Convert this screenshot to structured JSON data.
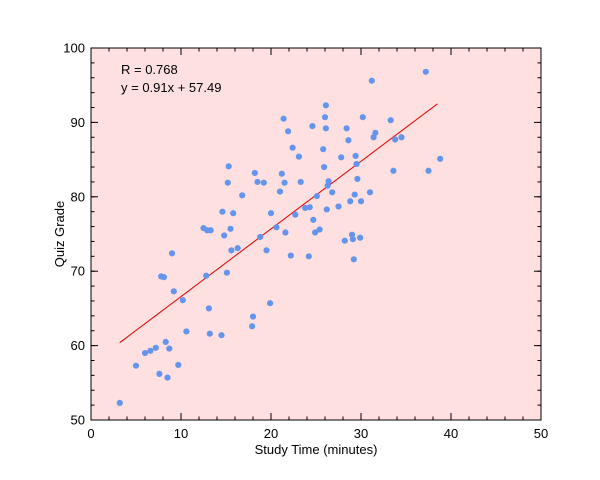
{
  "chart_data": {
    "type": "scatter",
    "xlabel": "Study Time (minutes)",
    "ylabel": "Quiz Grade",
    "xlim": [
      0,
      50
    ],
    "ylim": [
      50,
      100
    ],
    "xticks": [
      "0",
      "10",
      "20",
      "30",
      "40",
      "50"
    ],
    "yticks": [
      "50",
      "60",
      "70",
      "80",
      "90",
      "100"
    ],
    "grid": false,
    "annotations": [
      "R = 0.768",
      "y = 0.91x + 57.49"
    ],
    "fit_line": {
      "x": [
        3.2,
        38.5
      ],
      "y": [
        60.4,
        92.5
      ]
    },
    "colors": {
      "plot_background": "#ffe0e0",
      "points": "#6495ed",
      "fit_line": "#e01010"
    },
    "series": [
      {
        "x": [
          3.2,
          5.0,
          6.0,
          6.6,
          7.2,
          7.6,
          7.8,
          8.1,
          8.3,
          8.5,
          8.7,
          9.0,
          9.2,
          9.7,
          10.2,
          10.6,
          12.5,
          12.9,
          12.8,
          13.1,
          13.2,
          13.3,
          14.5,
          14.6,
          14.8,
          15.1,
          15.2,
          15.3,
          15.5,
          15.6,
          15.8,
          16.3,
          16.8,
          17.9,
          18.0,
          18.2,
          18.5,
          18.8,
          19.2,
          19.5,
          19.9,
          20.0,
          20.6,
          21.0,
          21.2,
          21.4,
          21.5,
          21.6,
          21.9,
          22.2,
          22.4,
          22.7,
          23.1,
          23.3,
          23.8,
          24.2,
          24.3,
          24.6,
          24.7,
          24.9,
          25.1,
          25.4,
          25.8,
          25.9,
          26.0,
          26.1,
          26.1,
          26.2,
          26.3,
          26.4,
          26.8,
          27.5,
          27.8,
          28.2,
          28.4,
          28.6,
          28.8,
          29.0,
          29.1,
          29.2,
          29.3,
          29.4,
          29.5,
          29.6,
          29.9,
          30.0,
          30.2,
          31.0,
          31.2,
          31.4,
          31.6,
          33.3,
          33.6,
          33.8,
          34.5,
          37.2,
          37.5,
          38.8
        ],
        "y": [
          52.3,
          57.3,
          59.0,
          59.3,
          59.7,
          56.2,
          69.3,
          69.2,
          60.5,
          55.7,
          59.6,
          72.4,
          67.3,
          57.4,
          66.1,
          61.9,
          75.8,
          75.5,
          69.4,
          65.0,
          61.6,
          75.5,
          61.4,
          78.0,
          74.8,
          69.8,
          81.9,
          84.1,
          75.7,
          72.8,
          77.8,
          73.1,
          80.2,
          62.6,
          63.9,
          83.2,
          82.0,
          74.6,
          81.9,
          72.8,
          65.7,
          77.8,
          75.9,
          80.7,
          83.1,
          90.5,
          81.9,
          75.2,
          88.8,
          72.1,
          86.6,
          77.6,
          85.4,
          82.0,
          78.5,
          72.0,
          78.6,
          89.5,
          76.9,
          75.2,
          80.1,
          75.6,
          86.4,
          84.0,
          90.7,
          89.2,
          92.3,
          78.3,
          81.5,
          82.1,
          80.6,
          78.7,
          85.3,
          74.1,
          89.2,
          87.6,
          79.4,
          74.9,
          74.3,
          71.6,
          80.3,
          85.5,
          84.4,
          82.4,
          74.5,
          79.4,
          90.7,
          80.6,
          95.6,
          88.0,
          88.6,
          90.3,
          83.5,
          87.7,
          88.0,
          96.8,
          83.5,
          85.1
        ]
      }
    ]
  }
}
